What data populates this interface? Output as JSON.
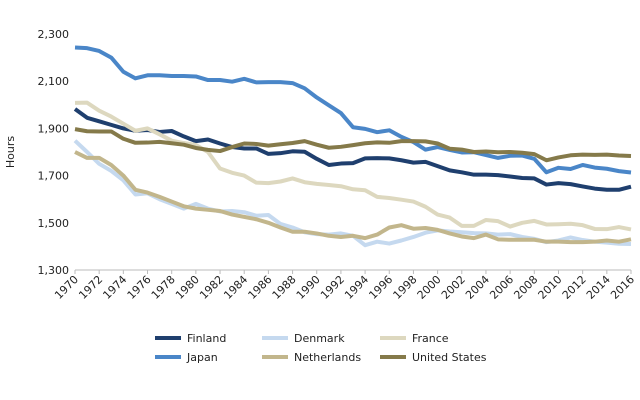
{
  "chart_data": {
    "type": "line",
    "y_label": "Hours",
    "x": [
      1970,
      1971,
      1972,
      1973,
      1974,
      1975,
      1976,
      1977,
      1978,
      1979,
      1980,
      1981,
      1982,
      1983,
      1984,
      1985,
      1986,
      1987,
      1988,
      1989,
      1990,
      1991,
      1992,
      1993,
      1994,
      1995,
      1996,
      1997,
      1998,
      1999,
      2000,
      2001,
      2002,
      2003,
      2004,
      2005,
      2006,
      2007,
      2008,
      2009,
      2010,
      2011,
      2012,
      2013,
      2014,
      2015,
      2016
    ],
    "xlim": [
      1970,
      2016
    ],
    "xticks": [
      1970,
      1972,
      1974,
      1976,
      1978,
      1980,
      1982,
      1984,
      1986,
      1988,
      1990,
      1992,
      1994,
      1996,
      1998,
      2000,
      2002,
      2004,
      2006,
      2008,
      2010,
      2012,
      2014,
      2016
    ],
    "ylim": [
      1300,
      2300
    ],
    "yticks": [
      {
        "value": 1300,
        "label": "1,300"
      },
      {
        "value": 1500,
        "label": "1,500"
      },
      {
        "value": 1700,
        "label": "1,700"
      },
      {
        "value": 1900,
        "label": "1,900"
      },
      {
        "value": 2100,
        "label": "2,100"
      },
      {
        "value": 2300,
        "label": "2,300"
      }
    ],
    "grid": false,
    "legend": "bottom",
    "series": [
      {
        "name": "Finland",
        "color": "#1f3f6e",
        "values": [
          1982,
          1945,
          1930,
          1915,
          1900,
          1890,
          1893,
          1885,
          1889,
          1866,
          1846,
          1853,
          1836,
          1821,
          1815,
          1815,
          1792,
          1795,
          1803,
          1801,
          1771,
          1745,
          1751,
          1753,
          1773,
          1774,
          1773,
          1765,
          1755,
          1758,
          1740,
          1722,
          1714,
          1704,
          1704,
          1702,
          1696,
          1690,
          1688,
          1662,
          1668,
          1664,
          1654,
          1645,
          1640,
          1640,
          1653
        ]
      },
      {
        "name": "Denmark",
        "color": "#c5d9ef",
        "values": [
          1848,
          1800,
          1750,
          1720,
          1680,
          1620,
          1625,
          1600,
          1580,
          1560,
          1580,
          1560,
          1548,
          1550,
          1545,
          1530,
          1533,
          1495,
          1480,
          1460,
          1452,
          1450,
          1455,
          1445,
          1405,
          1420,
          1412,
          1425,
          1440,
          1458,
          1468,
          1463,
          1460,
          1456,
          1455,
          1450,
          1452,
          1440,
          1432,
          1418,
          1425,
          1438,
          1427,
          1420,
          1416,
          1411,
          1410
        ]
      },
      {
        "name": "France",
        "color": "#ddd8bf",
        "values": [
          2008,
          2009,
          1975,
          1950,
          1920,
          1890,
          1900,
          1875,
          1848,
          1838,
          1830,
          1800,
          1730,
          1712,
          1700,
          1670,
          1668,
          1675,
          1688,
          1672,
          1665,
          1660,
          1655,
          1642,
          1638,
          1610,
          1605,
          1598,
          1590,
          1568,
          1535,
          1522,
          1487,
          1487,
          1512,
          1507,
          1484,
          1500,
          1508,
          1493,
          1494,
          1496,
          1490,
          1474,
          1473,
          1482,
          1472
        ]
      },
      {
        "name": "Japan",
        "color": "#4a86c8",
        "values": [
          2243,
          2240,
          2228,
          2200,
          2140,
          2112,
          2125,
          2125,
          2122,
          2122,
          2120,
          2105,
          2105,
          2098,
          2110,
          2095,
          2096,
          2096,
          2092,
          2070,
          2031,
          1998,
          1965,
          1905,
          1898,
          1884,
          1892,
          1864,
          1842,
          1810,
          1821,
          1809,
          1798,
          1799,
          1787,
          1775,
          1784,
          1785,
          1771,
          1714,
          1733,
          1728,
          1745,
          1734,
          1729,
          1719,
          1713
        ]
      },
      {
        "name": "Netherlands",
        "color": "#c2b68c",
        "values": [
          1800,
          1775,
          1775,
          1745,
          1700,
          1640,
          1628,
          1610,
          1590,
          1570,
          1560,
          1555,
          1550,
          1535,
          1525,
          1515,
          1500,
          1480,
          1462,
          1462,
          1455,
          1445,
          1440,
          1445,
          1435,
          1450,
          1480,
          1490,
          1475,
          1478,
          1470,
          1455,
          1442,
          1435,
          1450,
          1430,
          1428,
          1428,
          1428,
          1420,
          1420,
          1418,
          1418,
          1420,
          1425,
          1420,
          1430
        ]
      },
      {
        "name": "United States",
        "color": "#857a4a",
        "values": [
          1897,
          1888,
          1887,
          1887,
          1856,
          1839,
          1840,
          1843,
          1837,
          1831,
          1817,
          1809,
          1804,
          1821,
          1836,
          1834,
          1827,
          1833,
          1838,
          1846,
          1831,
          1818,
          1822,
          1829,
          1837,
          1841,
          1839,
          1846,
          1846,
          1845,
          1836,
          1814,
          1810,
          1800,
          1802,
          1799,
          1800,
          1797,
          1791,
          1765,
          1777,
          1786,
          1789,
          1788,
          1789,
          1785,
          1783
        ]
      }
    ]
  }
}
